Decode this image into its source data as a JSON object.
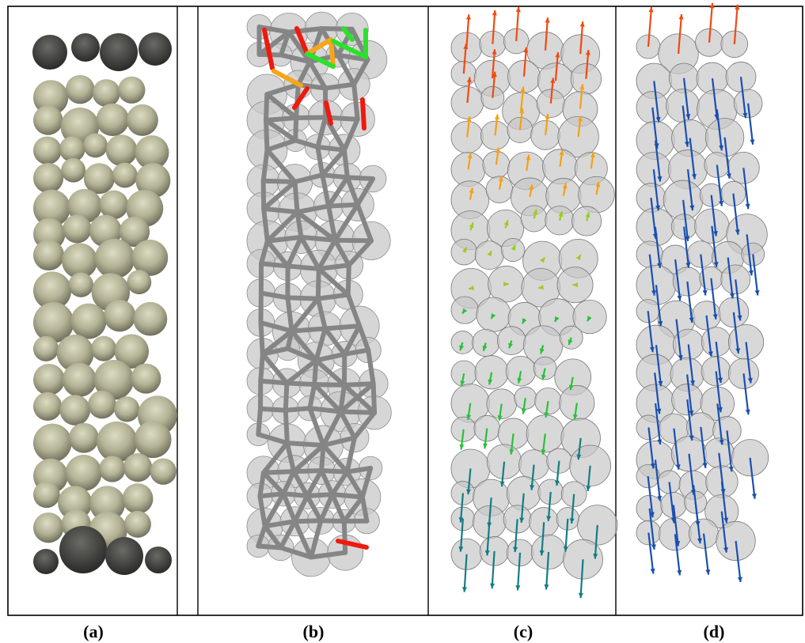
{
  "panels": [
    {
      "id": "a",
      "caption": "(a)",
      "content": "particle-column-render"
    },
    {
      "id": "b",
      "caption": "(b)",
      "content": "contact-force-network"
    },
    {
      "id": "c",
      "caption": "(c)",
      "content": "displacement-vectors"
    },
    {
      "id": "d",
      "caption": "(d)",
      "content": "displacement-vectors"
    }
  ],
  "colors": {
    "frame": "#000000",
    "particle_shaded": "#b9b89b",
    "particle_dark": "#3c3c3a",
    "particle_outline": "#8e8e8e",
    "particle_fill_translucent": "#c8c8c8",
    "network_edge": "#858585",
    "force_high": "#ee1a0f",
    "force_mid": "#f7a51b",
    "force_low": "#2be12b",
    "vec_up_top": "#f04a10",
    "vec_up_mid": "#f6a013",
    "vec_near_zero": "#9dcc1b",
    "vec_down_mid": "#2bbf3d",
    "vec_down_bottom": "#157c84",
    "vec_panel_d": "#1a4fb0"
  }
}
